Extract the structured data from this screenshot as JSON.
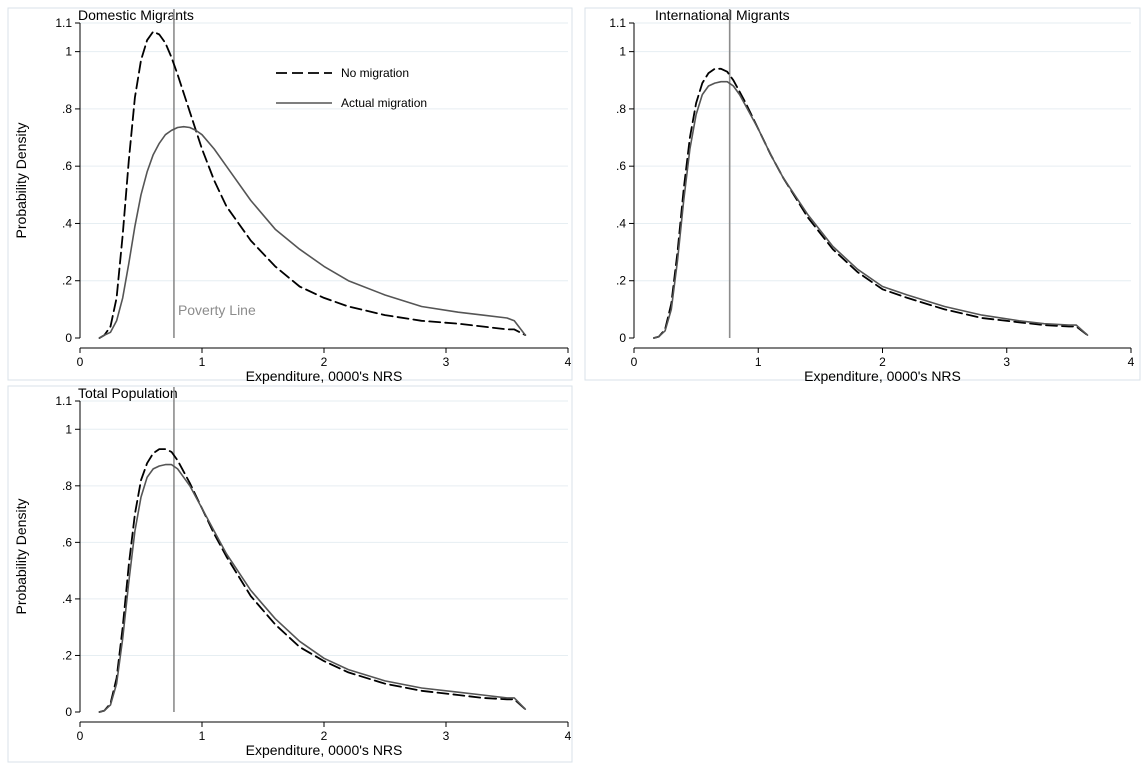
{
  "chart_data": [
    {
      "type": "line",
      "title": "Domestic Migrants",
      "xlabel": "Expenditure, 0000's NRS",
      "ylabel": "Probability Density",
      "xlim": [
        0,
        4
      ],
      "ylim": [
        0,
        1.1
      ],
      "xticks": [
        0,
        1,
        2,
        3,
        4
      ],
      "xtick_labels": [
        "0",
        "1",
        "2",
        "3",
        "4"
      ],
      "yticks": [
        0,
        0.2,
        0.4,
        0.6,
        0.8,
        1,
        1.1
      ],
      "ytick_labels": [
        "0",
        ".2",
        ".4",
        ".6",
        ".8",
        "1",
        "1.1"
      ],
      "grid": true,
      "legend": "top-center",
      "poverty_line": 0.77,
      "annotation": "Poverty Line",
      "series": [
        {
          "name": "No migration",
          "style": "dashed",
          "x": [
            0.16,
            0.2,
            0.25,
            0.3,
            0.35,
            0.4,
            0.45,
            0.5,
            0.55,
            0.6,
            0.65,
            0.7,
            0.75,
            0.8,
            0.9,
            1.0,
            1.1,
            1.2,
            1.4,
            1.6,
            1.8,
            2.0,
            2.2,
            2.5,
            2.8,
            3.1,
            3.3,
            3.5,
            3.56,
            3.65
          ],
          "y": [
            0,
            0.01,
            0.04,
            0.14,
            0.36,
            0.62,
            0.84,
            0.97,
            1.04,
            1.07,
            1.06,
            1.03,
            0.98,
            0.92,
            0.79,
            0.66,
            0.55,
            0.46,
            0.34,
            0.25,
            0.18,
            0.14,
            0.11,
            0.08,
            0.06,
            0.05,
            0.04,
            0.03,
            0.03,
            0.01
          ]
        },
        {
          "name": "Actual migration",
          "style": "solid",
          "x": [
            0.16,
            0.2,
            0.25,
            0.3,
            0.35,
            0.4,
            0.45,
            0.5,
            0.55,
            0.6,
            0.65,
            0.7,
            0.75,
            0.8,
            0.85,
            0.9,
            0.95,
            1.0,
            1.1,
            1.2,
            1.4,
            1.6,
            1.8,
            2.0,
            2.2,
            2.5,
            2.8,
            3.1,
            3.3,
            3.5,
            3.56,
            3.65
          ],
          "y": [
            0,
            0.01,
            0.02,
            0.06,
            0.14,
            0.26,
            0.39,
            0.5,
            0.58,
            0.64,
            0.68,
            0.71,
            0.725,
            0.735,
            0.738,
            0.735,
            0.725,
            0.71,
            0.66,
            0.6,
            0.48,
            0.38,
            0.31,
            0.25,
            0.2,
            0.15,
            0.11,
            0.09,
            0.08,
            0.07,
            0.06,
            0.01
          ]
        }
      ]
    },
    {
      "type": "line",
      "title": "International Migrants",
      "xlabel": "Expenditure, 0000's NRS",
      "ylabel": "",
      "xlim": [
        0,
        4
      ],
      "ylim": [
        0,
        1.1
      ],
      "xticks": [
        0,
        1,
        2,
        3,
        4
      ],
      "xtick_labels": [
        "0",
        "1",
        "2",
        "3",
        "4"
      ],
      "yticks": [
        0,
        0.2,
        0.4,
        0.6,
        0.8,
        1,
        1.1
      ],
      "ytick_labels": [
        "0",
        ".2",
        ".4",
        ".6",
        ".8",
        "1",
        "1.1"
      ],
      "grid": true,
      "poverty_line": 0.77,
      "series": [
        {
          "name": "No migration",
          "style": "dashed",
          "x": [
            0.16,
            0.2,
            0.25,
            0.3,
            0.35,
            0.4,
            0.45,
            0.5,
            0.55,
            0.6,
            0.65,
            0.7,
            0.75,
            0.8,
            0.85,
            0.9,
            1.0,
            1.1,
            1.2,
            1.4,
            1.6,
            1.8,
            2.0,
            2.2,
            2.5,
            2.8,
            3.1,
            3.3,
            3.5,
            3.56,
            3.65
          ],
          "y": [
            0,
            0.005,
            0.03,
            0.12,
            0.3,
            0.52,
            0.7,
            0.82,
            0.89,
            0.925,
            0.94,
            0.94,
            0.93,
            0.9,
            0.86,
            0.82,
            0.73,
            0.64,
            0.56,
            0.42,
            0.31,
            0.23,
            0.17,
            0.14,
            0.1,
            0.07,
            0.055,
            0.045,
            0.04,
            0.04,
            0.01
          ]
        },
        {
          "name": "Actual migration",
          "style": "solid",
          "x": [
            0.16,
            0.2,
            0.25,
            0.3,
            0.35,
            0.4,
            0.45,
            0.5,
            0.55,
            0.6,
            0.65,
            0.7,
            0.75,
            0.8,
            0.85,
            0.9,
            1.0,
            1.1,
            1.2,
            1.4,
            1.6,
            1.8,
            2.0,
            2.2,
            2.5,
            2.8,
            3.1,
            3.3,
            3.5,
            3.56,
            3.65
          ],
          "y": [
            0,
            0.005,
            0.025,
            0.1,
            0.27,
            0.48,
            0.66,
            0.78,
            0.85,
            0.88,
            0.89,
            0.895,
            0.895,
            0.88,
            0.85,
            0.81,
            0.73,
            0.64,
            0.56,
            0.43,
            0.32,
            0.24,
            0.18,
            0.15,
            0.11,
            0.08,
            0.06,
            0.05,
            0.045,
            0.045,
            0.01
          ]
        }
      ]
    },
    {
      "type": "line",
      "title": "Total Population",
      "xlabel": "Expenditure, 0000's NRS",
      "ylabel": "Probability Density",
      "xlim": [
        0,
        4
      ],
      "ylim": [
        0,
        1.1
      ],
      "xticks": [
        0,
        1,
        2,
        3,
        4
      ],
      "xtick_labels": [
        "0",
        "1",
        "2",
        "3",
        "4"
      ],
      "yticks": [
        0,
        0.2,
        0.4,
        0.6,
        0.8,
        1,
        1.1
      ],
      "ytick_labels": [
        "0",
        ".2",
        ".4",
        ".6",
        ".8",
        "1",
        "1.1"
      ],
      "grid": true,
      "poverty_line": 0.77,
      "series": [
        {
          "name": "No migration",
          "style": "dashed",
          "x": [
            0.16,
            0.2,
            0.25,
            0.3,
            0.35,
            0.4,
            0.45,
            0.5,
            0.55,
            0.6,
            0.65,
            0.7,
            0.75,
            0.8,
            0.85,
            0.9,
            1.0,
            1.1,
            1.2,
            1.4,
            1.6,
            1.8,
            2.0,
            2.2,
            2.5,
            2.8,
            3.1,
            3.3,
            3.5,
            3.56,
            3.65
          ],
          "y": [
            0,
            0.005,
            0.03,
            0.12,
            0.3,
            0.52,
            0.7,
            0.82,
            0.88,
            0.915,
            0.93,
            0.93,
            0.92,
            0.89,
            0.85,
            0.81,
            0.72,
            0.63,
            0.55,
            0.41,
            0.31,
            0.23,
            0.18,
            0.14,
            0.1,
            0.075,
            0.06,
            0.05,
            0.045,
            0.045,
            0.01
          ]
        },
        {
          "name": "Actual migration",
          "style": "solid",
          "x": [
            0.16,
            0.2,
            0.25,
            0.3,
            0.35,
            0.4,
            0.45,
            0.5,
            0.55,
            0.6,
            0.65,
            0.7,
            0.75,
            0.8,
            0.85,
            0.9,
            1.0,
            1.1,
            1.2,
            1.4,
            1.6,
            1.8,
            2.0,
            2.2,
            2.5,
            2.8,
            3.1,
            3.3,
            3.5,
            3.56,
            3.65
          ],
          "y": [
            0,
            0.005,
            0.025,
            0.1,
            0.26,
            0.46,
            0.64,
            0.76,
            0.83,
            0.86,
            0.87,
            0.875,
            0.875,
            0.86,
            0.83,
            0.8,
            0.72,
            0.64,
            0.56,
            0.43,
            0.33,
            0.25,
            0.19,
            0.15,
            0.11,
            0.085,
            0.07,
            0.06,
            0.05,
            0.05,
            0.01
          ]
        }
      ]
    }
  ],
  "colors": {
    "no_migration": "#000000",
    "actual_migration": "#555555",
    "poverty_line": "#8c8c8c",
    "grid": "#e6eef2",
    "panel_border": "#d8e2e8"
  }
}
